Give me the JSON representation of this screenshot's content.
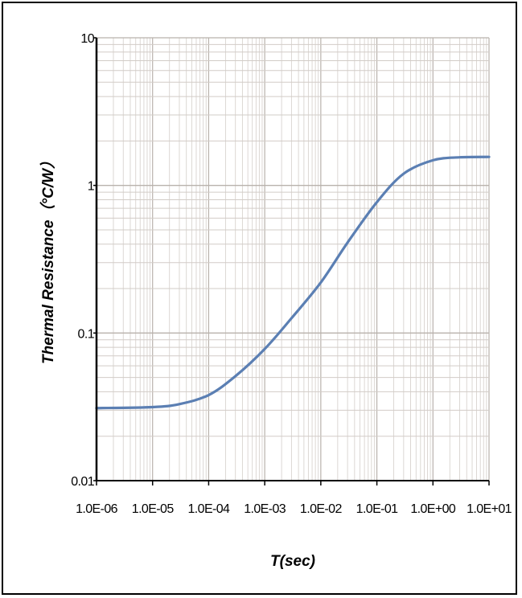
{
  "chart_data": {
    "type": "line",
    "xlabel": "T(sec)",
    "ylabel": "Thermal Resistance（°C/W）",
    "xscale": "log",
    "yscale": "log",
    "xlim": [
      1e-06,
      10
    ],
    "ylim": [
      0.01,
      10
    ],
    "grid": true,
    "x_tick_labels": [
      "1.0E-06",
      "1.0E-05",
      "1.0E-04",
      "1.0E-03",
      "1.0E-02",
      "1.0E-01",
      "1.0E+00",
      "1.0E+01"
    ],
    "x_tick_values": [
      1e-06,
      1e-05,
      0.0001,
      0.001,
      0.01,
      0.1,
      1,
      10
    ],
    "y_tick_labels": [
      "0.01",
      "0.1",
      "1",
      "10"
    ],
    "y_tick_values": [
      0.01,
      0.1,
      1,
      10
    ],
    "series": [
      {
        "color": "#5b7fb3",
        "x": [
          1e-06,
          1e-05,
          3e-05,
          0.0001,
          0.0003,
          0.001,
          0.003,
          0.01,
          0.03,
          0.1,
          0.3,
          1,
          3,
          10
        ],
        "y": [
          0.031,
          0.0315,
          0.033,
          0.038,
          0.051,
          0.078,
          0.126,
          0.22,
          0.41,
          0.77,
          1.2,
          1.48,
          1.55,
          1.56
        ]
      }
    ]
  }
}
